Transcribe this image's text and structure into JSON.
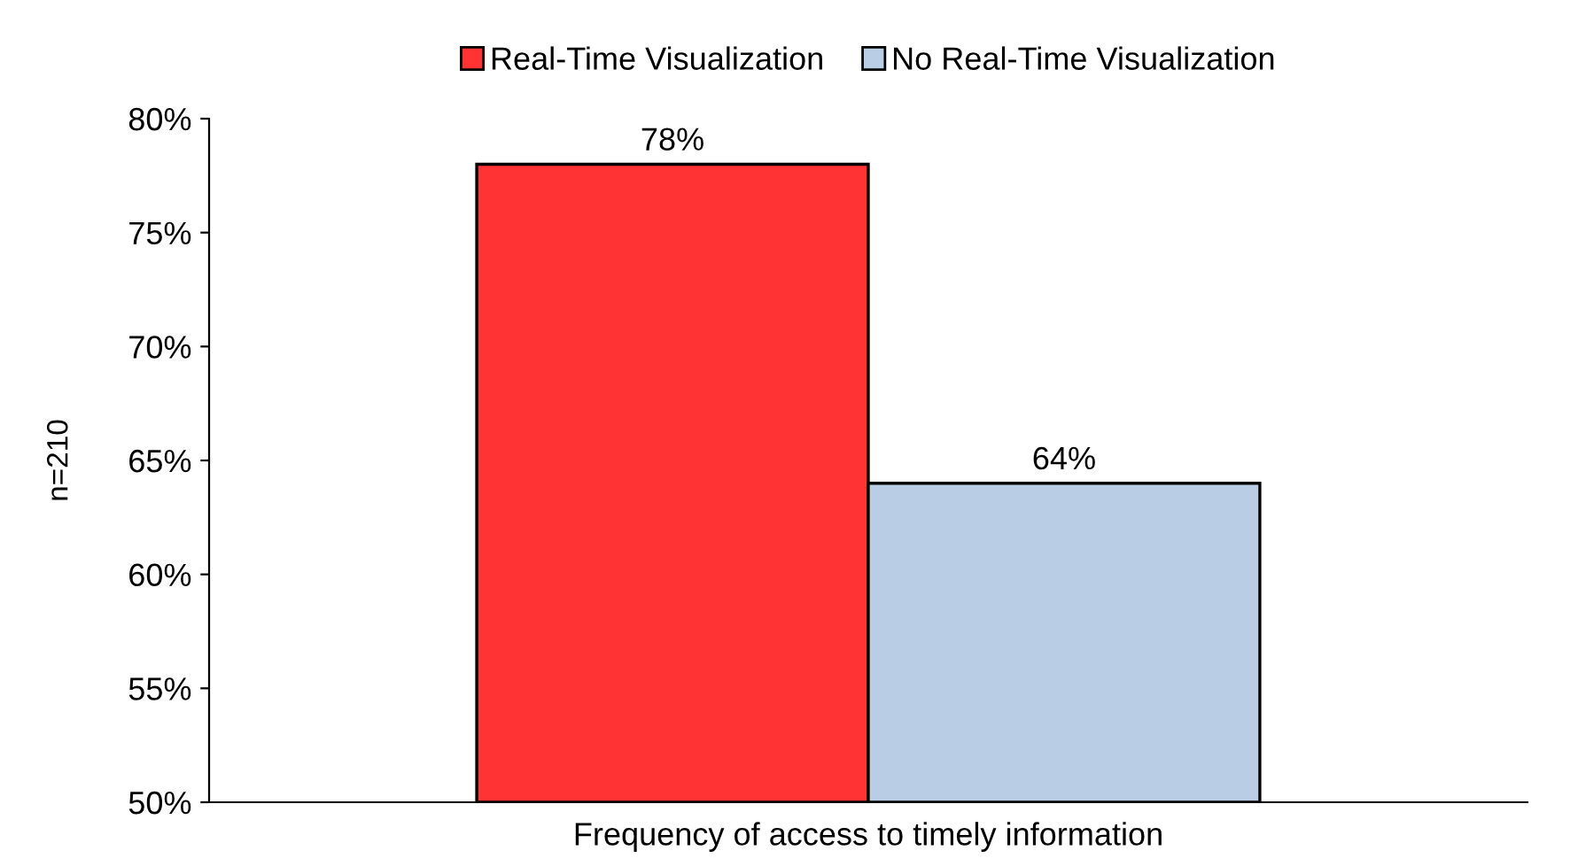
{
  "chart_data": {
    "type": "bar",
    "ylabel": "n=210",
    "categories": [
      "Frequency of access to timely information"
    ],
    "series": [
      {
        "name": "Real-Time Visualization",
        "color": "#ff3333",
        "values": [
          78
        ],
        "value_labels": [
          "78%"
        ]
      },
      {
        "name": "No Real-Time Visualization",
        "color": "#b9cde5",
        "values": [
          64
        ],
        "value_labels": [
          "64%"
        ]
      }
    ],
    "ylim": [
      50,
      80
    ],
    "yticks": [
      {
        "value": 50,
        "label": "50%"
      },
      {
        "value": 55,
        "label": "55%"
      },
      {
        "value": 60,
        "label": "60%"
      },
      {
        "value": 65,
        "label": "65%"
      },
      {
        "value": 70,
        "label": "70%"
      },
      {
        "value": 75,
        "label": "75%"
      },
      {
        "value": 80,
        "label": "80%"
      }
    ],
    "grid": false,
    "legend": "top"
  }
}
